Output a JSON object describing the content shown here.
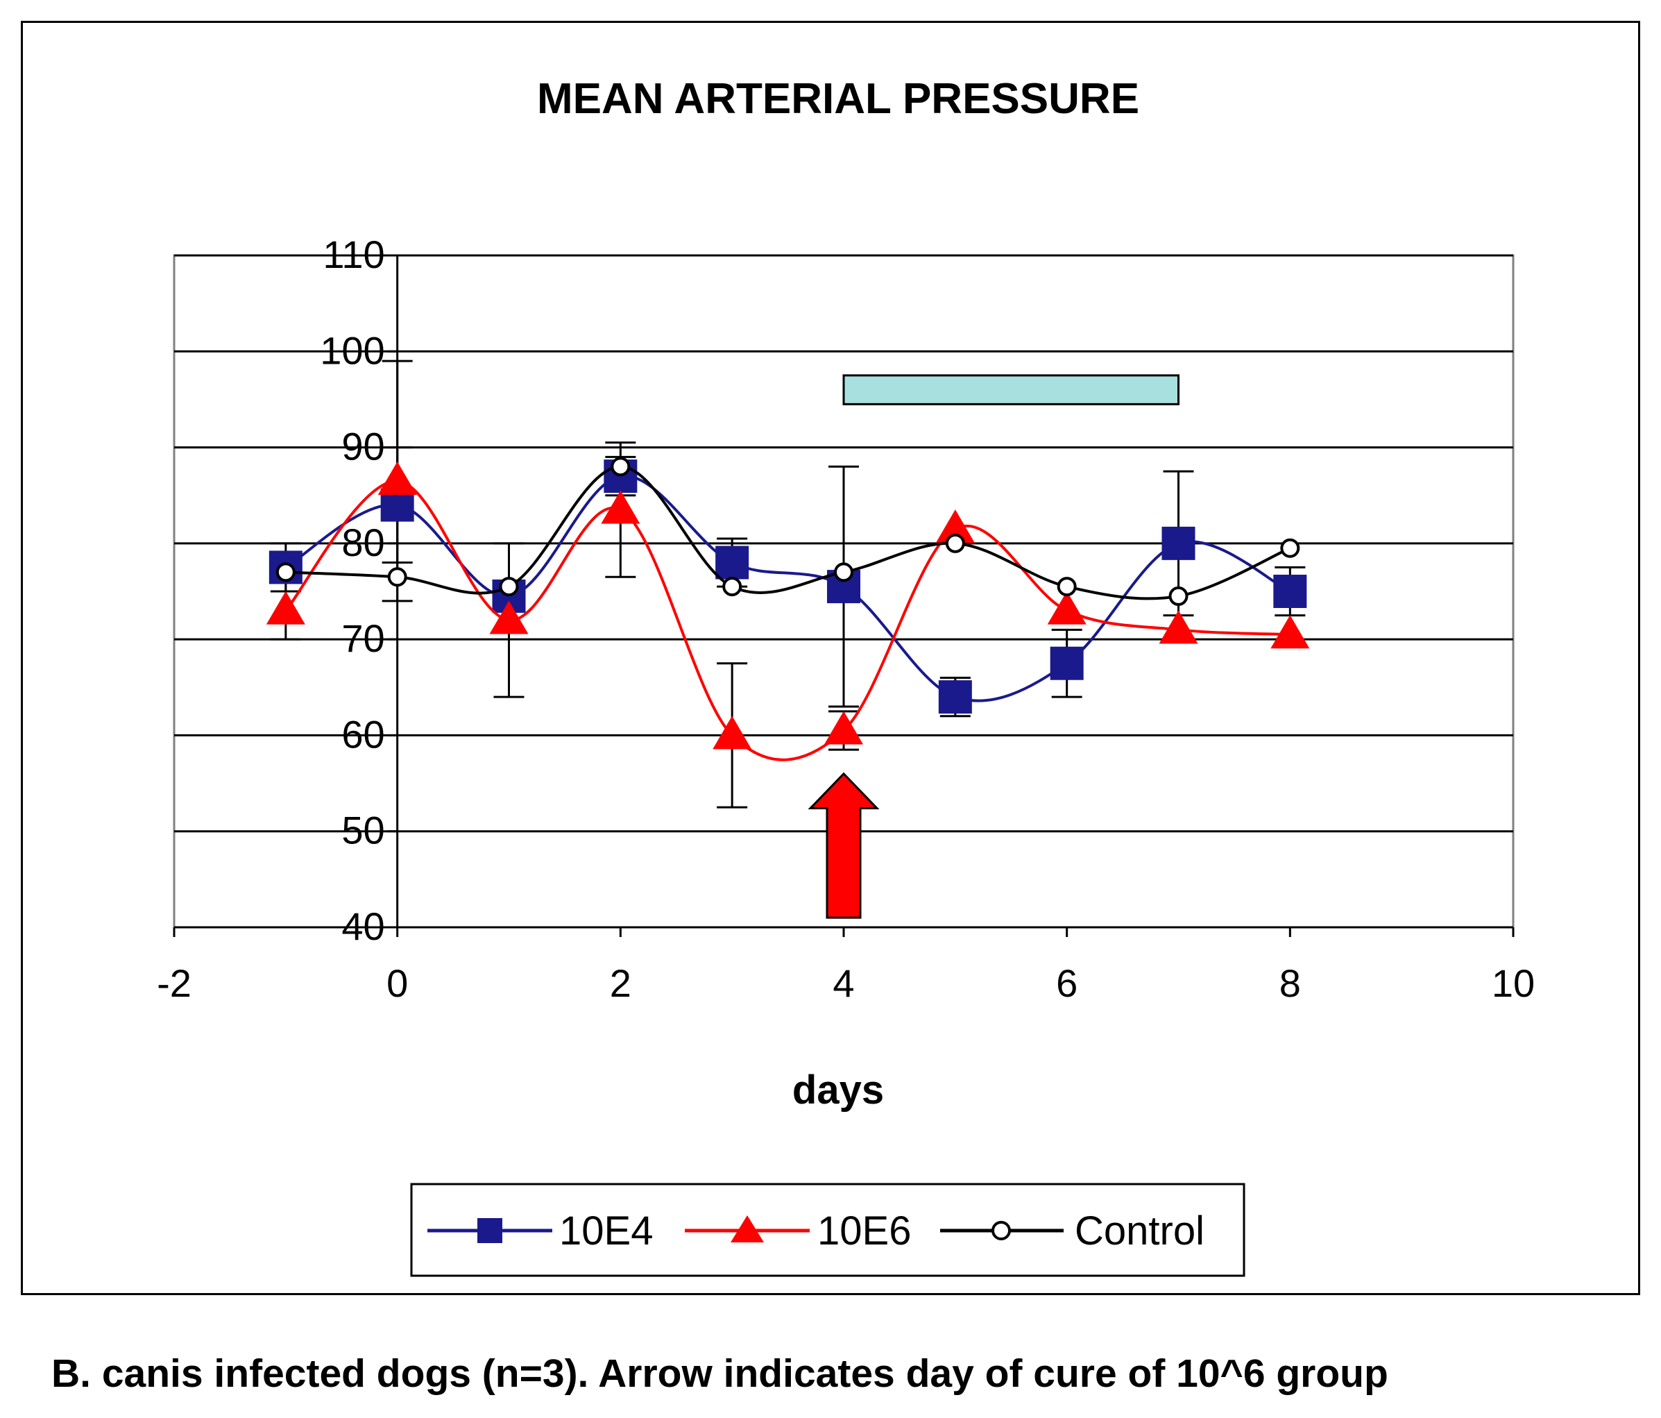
{
  "chart_data": {
    "type": "line",
    "title": "MEAN ARTERIAL PRESSURE",
    "xlabel": "days",
    "ylabel": "",
    "xlim": [
      -2,
      10
    ],
    "ylim": [
      40,
      110
    ],
    "x_ticks": [
      -2,
      0,
      2,
      4,
      6,
      8,
      10
    ],
    "y_ticks": [
      40,
      50,
      60,
      70,
      80,
      90,
      100,
      110
    ],
    "grid": "horizontal",
    "legend_position": "bottom",
    "series": [
      {
        "name": "10E4",
        "color": "#1a1a8c",
        "marker": "square",
        "x": [
          -1,
          0,
          1,
          2,
          3,
          4,
          5,
          6,
          7,
          8
        ],
        "y": [
          77.5,
          84,
          74.5,
          87,
          78,
          75.5,
          64,
          67.5,
          80,
          75
        ],
        "err": [
          2.5,
          6,
          0,
          2,
          2.5,
          12.5,
          2,
          3.5,
          7.5,
          2.5
        ]
      },
      {
        "name": "10E6",
        "color": "#ff0000",
        "marker": "triangle",
        "x": [
          -1,
          0,
          1,
          2,
          3,
          4,
          5,
          6,
          7,
          8
        ],
        "y": [
          73,
          86.5,
          72,
          83.5,
          60,
          60.5,
          81.5,
          73,
          71,
          70.5
        ],
        "err": [
          3,
          12.5,
          8,
          7,
          7.5,
          2,
          0,
          0,
          0,
          0
        ]
      },
      {
        "name": "Control",
        "color": "#000000",
        "marker": "circle",
        "x": [
          -1,
          0,
          1,
          2,
          3,
          4,
          5,
          6,
          7,
          8
        ],
        "y": [
          77,
          76.5,
          75.5,
          88,
          75.5,
          77,
          80,
          75.5,
          74.5,
          79.5
        ],
        "err": [
          0,
          0,
          0,
          0,
          0,
          0,
          0,
          0,
          0,
          0
        ]
      }
    ],
    "annotations": [
      {
        "type": "bar",
        "label": "",
        "x_from": 4,
        "x_to": 7,
        "y_from": 94.5,
        "y_to": 97.5,
        "color": "#a8e0e0"
      },
      {
        "type": "arrow",
        "label": "",
        "x": 4,
        "direction": "up",
        "y_from": 41,
        "y_to": 56,
        "color": "#ff0000"
      }
    ]
  },
  "caption": "B. canis infected dogs (n=3). Arrow indicates day of cure of 10^6 group"
}
